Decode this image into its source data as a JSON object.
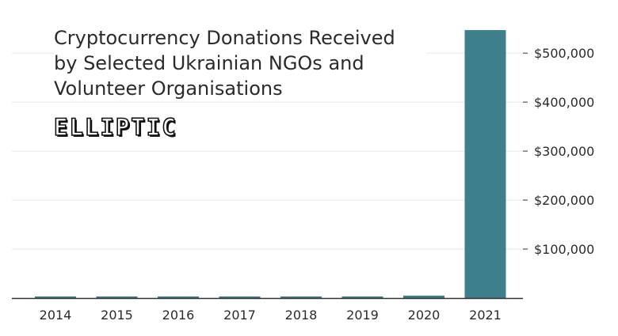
{
  "title_lines": [
    "Cryptocurrency Donations Received",
    "by Selected Ukrainian NGOs and",
    "Volunteer Organisations"
  ],
  "logo_text": "ELLIPTIC",
  "colors": {
    "bar": "#3d7f8a",
    "grid": "#e6e6e6",
    "axis": "#333333",
    "text": "#2b2b2b"
  },
  "chart_data": {
    "type": "bar",
    "title": "Cryptocurrency Donations Received by Selected Ukrainian NGOs and Volunteer Organisations",
    "categories": [
      "2014",
      "2015",
      "2016",
      "2017",
      "2018",
      "2019",
      "2020",
      "2021"
    ],
    "values": [
      800,
      500,
      600,
      500,
      700,
      3000,
      5000,
      547000
    ],
    "xlabel": "",
    "ylabel": "",
    "ylim": [
      0,
      560000
    ],
    "yticks": [
      100000,
      200000,
      300000,
      400000,
      500000
    ],
    "ytick_labels": [
      "$100,000",
      "$200,000",
      "$300,000",
      "$400,000",
      "$500,000"
    ],
    "y_axis_side": "right",
    "grid": true,
    "legend": "none"
  }
}
